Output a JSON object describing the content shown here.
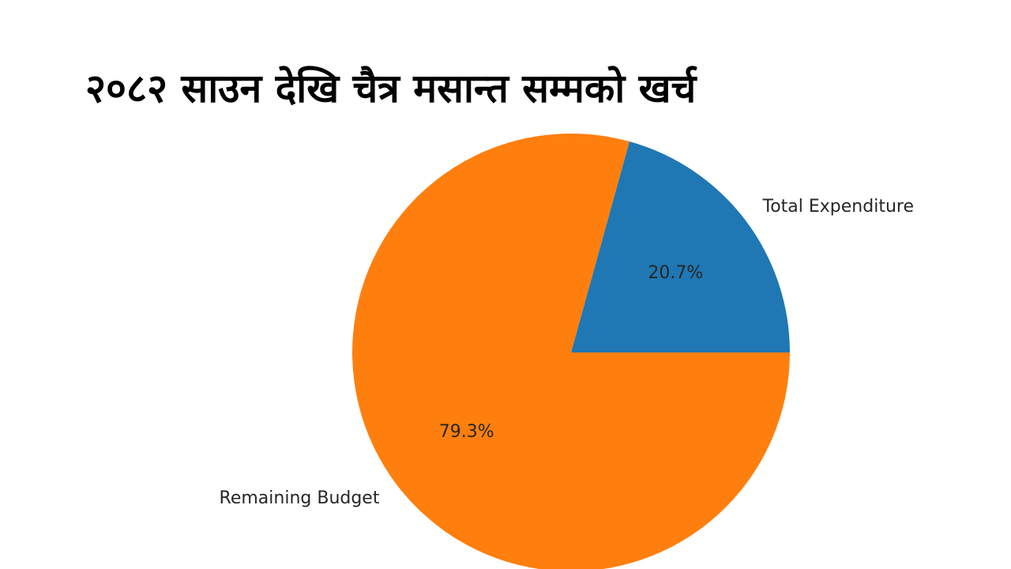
{
  "title": "२०८२ साउन देखि चैत्र मसान्त सम्मको खर्च",
  "chart_data": {
    "type": "pie",
    "title": "२०८२ साउन देखि चैत्र मसान्त सम्मको खर्च",
    "labels": [
      "Total Expenditure",
      "Remaining Budget"
    ],
    "values": [
      20.7,
      79.3
    ],
    "percent_labels": [
      "20.7%",
      "79.3%"
    ],
    "colors": [
      "#1f77b4",
      "#ff7f0e"
    ],
    "start_angle_deg": 0,
    "direction": "counterclockwise",
    "legend": "none"
  }
}
